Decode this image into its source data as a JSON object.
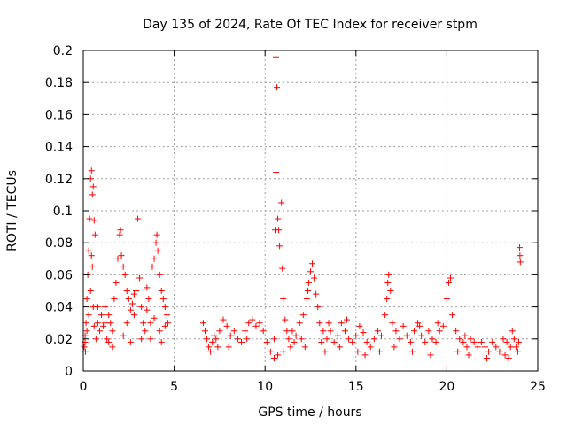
{
  "chart_data": {
    "type": "scatter",
    "title": "Day 135 of 2024, Rate Of TEC Index for receiver stpm",
    "xlabel": "GPS time / hours",
    "ylabel": "ROTI / TECUs",
    "xlim": [
      0,
      25
    ],
    "ylim": [
      0,
      0.2
    ],
    "xticks": [
      0,
      5,
      10,
      15,
      20,
      25
    ],
    "xtick_labels": [
      "0",
      "5",
      "10",
      "15",
      "20",
      "25"
    ],
    "yticks": [
      0,
      0.02,
      0.04,
      0.06,
      0.08,
      0.1,
      0.12,
      0.14,
      0.16,
      0.18,
      0.2
    ],
    "ytick_labels": [
      "0",
      "0.02",
      "0.04",
      "0.06",
      "0.08",
      "0.1",
      "0.12",
      "0.14",
      "0.16",
      "0.18",
      "0.2"
    ],
    "grid": true,
    "marker": "+",
    "color": "#ff0000",
    "series": [
      {
        "points": [
          [
            0.05,
            0.015
          ],
          [
            0.1,
            0.022
          ],
          [
            0.15,
            0.03
          ],
          [
            0.2,
            0.045
          ],
          [
            0.25,
            0.06
          ],
          [
            0.3,
            0.075
          ],
          [
            0.35,
            0.095
          ],
          [
            0.4,
            0.12
          ],
          [
            0.45,
            0.125
          ],
          [
            0.5,
            0.11
          ],
          [
            0.55,
            0.115
          ],
          [
            0.6,
            0.094
          ],
          [
            0.65,
            0.085
          ],
          [
            0.45,
            0.072
          ],
          [
            0.4,
            0.05
          ],
          [
            0.3,
            0.035
          ],
          [
            0.2,
            0.025
          ],
          [
            0.1,
            0.018
          ],
          [
            0.12,
            0.012
          ],
          [
            0.5,
            0.065
          ],
          [
            0.55,
            0.04
          ],
          [
            0.6,
            0.028
          ],
          [
            0.7,
            0.02
          ],
          [
            0.8,
            0.03
          ],
          [
            0.9,
            0.025
          ],
          [
            1.0,
            0.035
          ],
          [
            1.1,
            0.028
          ],
          [
            1.2,
            0.04
          ],
          [
            1.3,
            0.02
          ],
          [
            1.4,
            0.018
          ],
          [
            1.5,
            0.03
          ],
          [
            1.6,
            0.025
          ],
          [
            1.7,
            0.045
          ],
          [
            1.8,
            0.055
          ],
          [
            1.9,
            0.07
          ],
          [
            2.0,
            0.085
          ],
          [
            2.05,
            0.088
          ],
          [
            2.1,
            0.072
          ],
          [
            2.2,
            0.065
          ],
          [
            2.3,
            0.06
          ],
          [
            2.4,
            0.05
          ],
          [
            2.5,
            0.045
          ],
          [
            2.6,
            0.038
          ],
          [
            2.7,
            0.042
          ],
          [
            2.8,
            0.035
          ],
          [
            2.9,
            0.05
          ],
          [
            3.0,
            0.095
          ],
          [
            3.1,
            0.058
          ],
          [
            3.2,
            0.04
          ],
          [
            3.3,
            0.03
          ],
          [
            3.4,
            0.025
          ],
          [
            3.5,
            0.038
          ],
          [
            3.6,
            0.045
          ],
          [
            3.7,
            0.03
          ],
          [
            3.8,
            0.065
          ],
          [
            3.9,
            0.07
          ],
          [
            4.0,
            0.08
          ],
          [
            4.05,
            0.085
          ],
          [
            4.1,
            0.075
          ],
          [
            4.2,
            0.06
          ],
          [
            4.3,
            0.05
          ],
          [
            4.4,
            0.045
          ],
          [
            4.5,
            0.04
          ],
          [
            4.6,
            0.035
          ],
          [
            4.65,
            0.03
          ],
          [
            1.6,
            0.015
          ],
          [
            2.2,
            0.022
          ],
          [
            2.6,
            0.018
          ],
          [
            3.2,
            0.02
          ],
          [
            3.7,
            0.02
          ],
          [
            4.2,
            0.025
          ],
          [
            4.5,
            0.028
          ],
          [
            1.2,
            0.03
          ],
          [
            1.4,
            0.035
          ],
          [
            2.4,
            0.03
          ],
          [
            2.8,
            0.048
          ],
          [
            3.5,
            0.052
          ],
          [
            3.9,
            0.033
          ],
          [
            4.3,
            0.018
          ],
          [
            0.8,
            0.04
          ],
          [
            6.6,
            0.03
          ],
          [
            6.7,
            0.025
          ],
          [
            6.8,
            0.02
          ],
          [
            6.9,
            0.015
          ],
          [
            7.0,
            0.012
          ],
          [
            7.1,
            0.018
          ],
          [
            7.2,
            0.022
          ],
          [
            7.3,
            0.02
          ],
          [
            7.5,
            0.025
          ],
          [
            7.7,
            0.032
          ],
          [
            7.9,
            0.028
          ],
          [
            8.1,
            0.022
          ],
          [
            8.3,
            0.025
          ],
          [
            8.5,
            0.02
          ],
          [
            8.7,
            0.018
          ],
          [
            8.9,
            0.025
          ],
          [
            9.1,
            0.03
          ],
          [
            9.3,
            0.032
          ],
          [
            9.5,
            0.028
          ],
          [
            9.7,
            0.03
          ],
          [
            9.9,
            0.025
          ],
          [
            10.1,
            0.018
          ],
          [
            10.3,
            0.012
          ],
          [
            10.5,
            0.02
          ],
          [
            10.55,
            0.088
          ],
          [
            10.6,
            0.196
          ],
          [
            10.65,
            0.177
          ],
          [
            10.6,
            0.124
          ],
          [
            10.7,
            0.095
          ],
          [
            10.75,
            0.088
          ],
          [
            10.8,
            0.078
          ],
          [
            10.9,
            0.105
          ],
          [
            10.95,
            0.064
          ],
          [
            11.0,
            0.045
          ],
          [
            11.1,
            0.032
          ],
          [
            11.2,
            0.025
          ],
          [
            11.3,
            0.02
          ],
          [
            11.4,
            0.015
          ],
          [
            11.5,
            0.025
          ],
          [
            11.7,
            0.022
          ],
          [
            11.9,
            0.03
          ],
          [
            12.1,
            0.035
          ],
          [
            12.3,
            0.045
          ],
          [
            12.4,
            0.055
          ],
          [
            12.5,
            0.062
          ],
          [
            12.6,
            0.067
          ],
          [
            12.7,
            0.058
          ],
          [
            12.8,
            0.048
          ],
          [
            12.9,
            0.04
          ],
          [
            13.0,
            0.03
          ],
          [
            13.2,
            0.025
          ],
          [
            13.4,
            0.02
          ],
          [
            13.6,
            0.025
          ],
          [
            13.8,
            0.018
          ],
          [
            14.0,
            0.022
          ],
          [
            14.2,
            0.03
          ],
          [
            14.4,
            0.025
          ],
          [
            14.6,
            0.02
          ],
          [
            14.8,
            0.018
          ],
          [
            15.0,
            0.022
          ],
          [
            15.2,
            0.028
          ],
          [
            15.4,
            0.024
          ],
          [
            15.6,
            0.018
          ],
          [
            15.8,
            0.015
          ],
          [
            16.0,
            0.02
          ],
          [
            16.2,
            0.025
          ],
          [
            16.4,
            0.022
          ],
          [
            16.6,
            0.035
          ],
          [
            16.7,
            0.045
          ],
          [
            16.8,
            0.06
          ],
          [
            16.9,
            0.05
          ],
          [
            17.0,
            0.03
          ],
          [
            17.2,
            0.025
          ],
          [
            17.4,
            0.02
          ],
          [
            17.6,
            0.028
          ],
          [
            17.8,
            0.022
          ],
          [
            18.0,
            0.018
          ],
          [
            18.2,
            0.025
          ],
          [
            18.4,
            0.03
          ],
          [
            18.6,
            0.022
          ],
          [
            18.8,
            0.018
          ],
          [
            19.0,
            0.025
          ],
          [
            19.2,
            0.02
          ],
          [
            19.4,
            0.018
          ],
          [
            19.6,
            0.025
          ],
          [
            19.8,
            0.028
          ],
          [
            20.0,
            0.045
          ],
          [
            20.1,
            0.055
          ],
          [
            20.2,
            0.058
          ],
          [
            20.3,
            0.035
          ],
          [
            20.5,
            0.025
          ],
          [
            20.7,
            0.02
          ],
          [
            20.9,
            0.018
          ],
          [
            21.1,
            0.015
          ],
          [
            21.3,
            0.02
          ],
          [
            21.5,
            0.018
          ],
          [
            21.7,
            0.015
          ],
          [
            21.9,
            0.018
          ],
          [
            22.1,
            0.015
          ],
          [
            22.3,
            0.012
          ],
          [
            22.5,
            0.018
          ],
          [
            22.7,
            0.015
          ],
          [
            22.9,
            0.012
          ],
          [
            23.1,
            0.02
          ],
          [
            23.3,
            0.018
          ],
          [
            23.5,
            0.015
          ],
          [
            23.6,
            0.025
          ],
          [
            23.7,
            0.02
          ],
          [
            23.8,
            0.015
          ],
          [
            23.9,
            0.012
          ],
          [
            23.95,
            0.018
          ],
          [
            24.0,
            0.077
          ],
          [
            24.02,
            0.072
          ],
          [
            24.04,
            0.068
          ],
          [
            10.5,
            0.008
          ],
          [
            10.7,
            0.01
          ],
          [
            11.0,
            0.012
          ],
          [
            11.6,
            0.018
          ],
          [
            12.0,
            0.02
          ],
          [
            12.2,
            0.015
          ],
          [
            13.1,
            0.018
          ],
          [
            13.3,
            0.012
          ],
          [
            14.1,
            0.015
          ],
          [
            15.1,
            0.012
          ],
          [
            15.5,
            0.01
          ],
          [
            16.3,
            0.012
          ],
          [
            17.1,
            0.015
          ],
          [
            18.1,
            0.012
          ],
          [
            19.1,
            0.01
          ],
          [
            20.6,
            0.012
          ],
          [
            21.2,
            0.01
          ],
          [
            22.2,
            0.008
          ],
          [
            23.2,
            0.01
          ],
          [
            23.4,
            0.008
          ],
          [
            8.0,
            0.015
          ],
          [
            9.0,
            0.02
          ],
          [
            7.4,
            0.015
          ],
          [
            12.35,
            0.05
          ],
          [
            16.75,
            0.055
          ],
          [
            13.5,
            0.03
          ],
          [
            14.5,
            0.032
          ],
          [
            18.5,
            0.028
          ],
          [
            19.5,
            0.03
          ],
          [
            21.0,
            0.022
          ]
        ]
      }
    ]
  }
}
